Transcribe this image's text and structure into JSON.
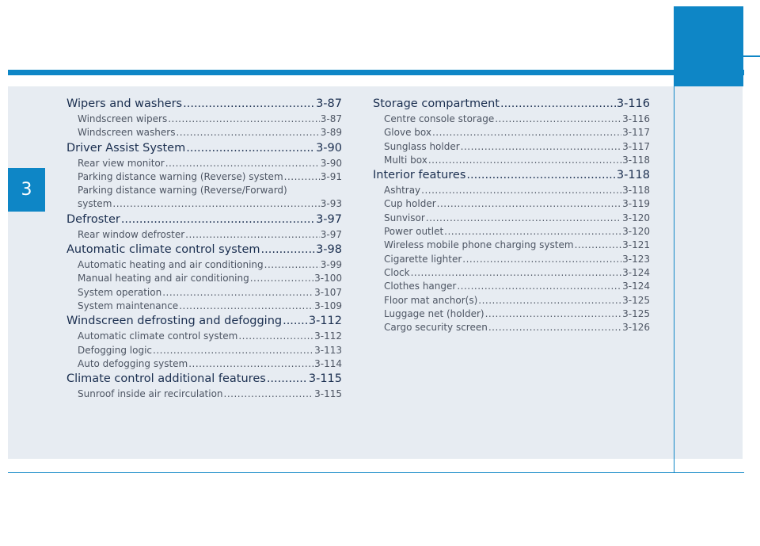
{
  "chapter_number": "3",
  "left_column": [
    {
      "kind": "sec",
      "label": "Wipers and washers",
      "page": "3-87"
    },
    {
      "kind": "sub",
      "label": "Windscreen wipers",
      "page": "3-87"
    },
    {
      "kind": "sub",
      "label": "Windscreen washers",
      "page": "3-89"
    },
    {
      "kind": "sec",
      "label": "Driver Assist System",
      "page": "3-90"
    },
    {
      "kind": "sub",
      "label": "Rear view monitor",
      "page": "3-90"
    },
    {
      "kind": "sub",
      "label": "Parking distance warning (Reverse) system",
      "page": "3-91"
    },
    {
      "kind": "plain",
      "label": "Parking distance warning (Reverse/Forward)"
    },
    {
      "kind": "sub",
      "label": "system",
      "page": "3-93"
    },
    {
      "kind": "sec",
      "label": "Defroster",
      "page": "3-97"
    },
    {
      "kind": "sub",
      "label": "Rear window defroster",
      "page": "3-97"
    },
    {
      "kind": "sec",
      "label": "Automatic climate control system",
      "page": "3-98"
    },
    {
      "kind": "sub",
      "label": "Automatic heating and air conditioning",
      "page": "3-99"
    },
    {
      "kind": "sub",
      "label": "Manual heating and air conditioning",
      "page": "3-100"
    },
    {
      "kind": "sub",
      "label": "System operation",
      "page": "3-107"
    },
    {
      "kind": "sub",
      "label": "System maintenance",
      "page": "3-109"
    },
    {
      "kind": "sec",
      "label": "Windscreen defrosting and defogging",
      "page": "3-112"
    },
    {
      "kind": "sub",
      "label": "Automatic climate control system",
      "page": "3-112"
    },
    {
      "kind": "sub",
      "label": "Defogging logic",
      "page": "3-113"
    },
    {
      "kind": "sub",
      "label": "Auto defogging system",
      "page": "3-114"
    },
    {
      "kind": "sec",
      "label": "Climate control additional features",
      "page": "3-115"
    },
    {
      "kind": "sub",
      "label": "Sunroof inside air recirculation",
      "page": "3-115"
    }
  ],
  "right_column": [
    {
      "kind": "sec",
      "label": "Storage compartment",
      "page": "3-116"
    },
    {
      "kind": "sub",
      "label": "Centre console storage",
      "page": "3-116"
    },
    {
      "kind": "sub",
      "label": "Glove box",
      "page": "3-117"
    },
    {
      "kind": "sub",
      "label": "Sunglass holder",
      "page": "3-117"
    },
    {
      "kind": "sub",
      "label": "Multi box",
      "page": "3-118"
    },
    {
      "kind": "sec",
      "label": "Interior features",
      "page": "3-118"
    },
    {
      "kind": "sub",
      "label": "Ashtray",
      "page": "3-118"
    },
    {
      "kind": "sub",
      "label": "Cup holder",
      "page": "3-119"
    },
    {
      "kind": "sub",
      "label": "Sunvisor",
      "page": "3-120"
    },
    {
      "kind": "sub",
      "label": "Power outlet",
      "page": "3-120"
    },
    {
      "kind": "sub",
      "label": "Wireless mobile phone charging system",
      "page": "3-121"
    },
    {
      "kind": "sub",
      "label": "Cigarette lighter",
      "page": "3-123"
    },
    {
      "kind": "sub",
      "label": "Clock",
      "page": "3-124"
    },
    {
      "kind": "sub",
      "label": "Clothes hanger",
      "page": "3-124"
    },
    {
      "kind": "sub",
      "label": "Floor mat anchor(s)",
      "page": "3-125"
    },
    {
      "kind": "sub",
      "label": "Luggage net (holder)",
      "page": "3-125"
    },
    {
      "kind": "sub",
      "label": "Cargo security screen",
      "page": "3-126"
    }
  ],
  "colors": {
    "accent_blue": "#0e86c6",
    "panel_bg": "#e7ecf2",
    "section_text": "#1a2e4f",
    "entry_text": "#4d5563"
  }
}
